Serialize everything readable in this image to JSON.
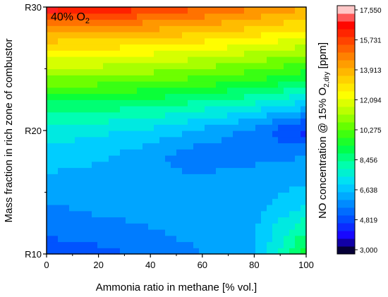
{
  "chart_data": {
    "type": "heatmap",
    "annotation": {
      "text": "40% O",
      "sub": "2"
    },
    "xlabel": "Ammonia ratio in methane [% vol.]",
    "ylabel": "Mass fraction in rich zone of combustor",
    "colorbar_label": {
      "main": "NO concentration @ 15% O",
      "sub": "2,dry",
      "tail": " [ppm]"
    },
    "xlim": [
      0,
      100
    ],
    "ylim": [
      10,
      30
    ],
    "x_ticks": [
      0,
      20,
      40,
      60,
      80,
      100
    ],
    "y_ticks": [
      10,
      20,
      30
    ],
    "y_tick_labels": [
      "R10",
      "R20",
      "R30"
    ],
    "colorbar_range": [
      3000,
      17550
    ],
    "colorbar_ticks": [
      "3,000",
      "4,819",
      "6,638",
      "8,456",
      "10,275",
      "12,094",
      "13,913",
      "15,731",
      "17,550"
    ],
    "x": [
      0,
      20,
      40,
      60,
      80,
      100
    ],
    "y": [
      10,
      12,
      14,
      16,
      18,
      20,
      22,
      24,
      26,
      28,
      30
    ],
    "z": [
      [
        5000,
        5200,
        5600,
        6000,
        6400,
        9600
      ],
      [
        5600,
        5800,
        6000,
        6300,
        6600,
        8400
      ],
      [
        6000,
        6200,
        6300,
        6400,
        6400,
        7200
      ],
      [
        6500,
        6300,
        6100,
        6200,
        6400,
        6500
      ],
      [
        7000,
        6800,
        6200,
        5600,
        5800,
        6000
      ],
      [
        7500,
        7400,
        7100,
        6500,
        5800,
        4500
      ],
      [
        8800,
        8700,
        8500,
        8100,
        7600,
        6800
      ],
      [
        10600,
        10500,
        10300,
        10000,
        9600,
        9000
      ],
      [
        12200,
        12100,
        11900,
        11600,
        11200,
        10700
      ],
      [
        14000,
        13900,
        13700,
        13400,
        13000,
        12500
      ],
      [
        16800,
        16300,
        15800,
        15200,
        14600,
        14000
      ]
    ],
    "palette": [
      "#000000",
      "#1a00ff",
      "#0050ff",
      "#0096ff",
      "#00dcff",
      "#00ffb0",
      "#00ff40",
      "#50ff00",
      "#b4ff00",
      "#ffff00",
      "#ffc800",
      "#ff8c00",
      "#ff4600",
      "#ff0000",
      "#ffffff"
    ]
  }
}
